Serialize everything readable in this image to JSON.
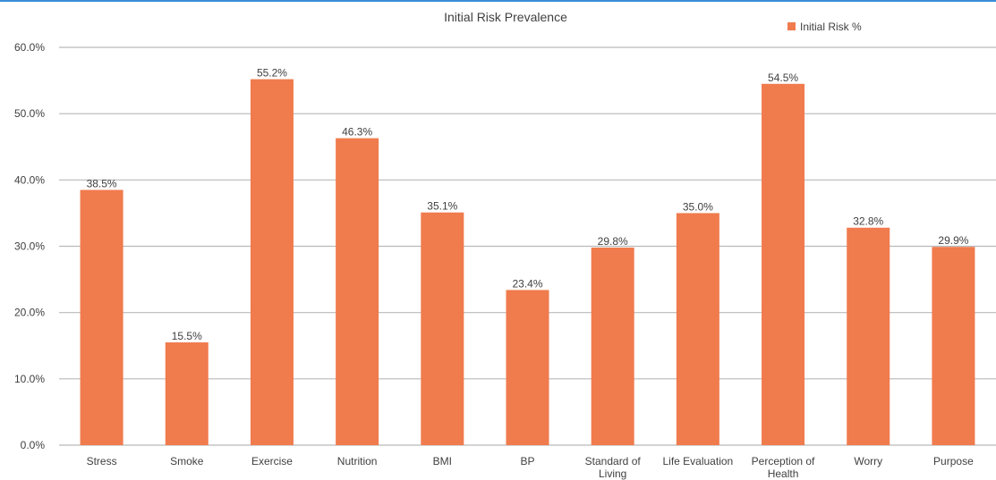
{
  "chart_data": {
    "type": "bar",
    "title": "Initial Risk Prevalence",
    "categories": [
      "Stress",
      "Smoke",
      "Exercise",
      "Nutrition",
      "BMI",
      "BP",
      "Standard of Living",
      "Life Evaluation",
      "Perception of Health",
      "Worry",
      "Purpose"
    ],
    "category_lines": [
      [
        "Stress"
      ],
      [
        "Smoke"
      ],
      [
        "Exercise"
      ],
      [
        "Nutrition"
      ],
      [
        "BMI"
      ],
      [
        "BP"
      ],
      [
        "Standard of",
        "Living"
      ],
      [
        "Life Evaluation"
      ],
      [
        "Perception of",
        "Health"
      ],
      [
        "Worry"
      ],
      [
        "Purpose"
      ]
    ],
    "series": [
      {
        "name": "Initial Risk %",
        "values": [
          38.5,
          15.5,
          55.2,
          46.3,
          35.1,
          23.4,
          29.8,
          35.0,
          54.5,
          32.8,
          29.9
        ],
        "labels": [
          "38.5%",
          "15.5%",
          "55.2%",
          "46.3%",
          "35.1%",
          "23.4%",
          "29.8%",
          "35.0%",
          "54.5%",
          "32.8%",
          "29.9%"
        ],
        "color": "#f07b4d"
      }
    ],
    "ylim": [
      0,
      60
    ],
    "yticks": [
      "0.0%",
      "10.0%",
      "20.0%",
      "30.0%",
      "40.0%",
      "50.0%",
      "60.0%"
    ],
    "grid": true,
    "legend_position": "top-right",
    "xlabel": "",
    "ylabel": ""
  },
  "colors": {
    "bar": "#f07b4d",
    "grid": "#b9b9b9",
    "accent_rule": "#3a8ed6"
  }
}
